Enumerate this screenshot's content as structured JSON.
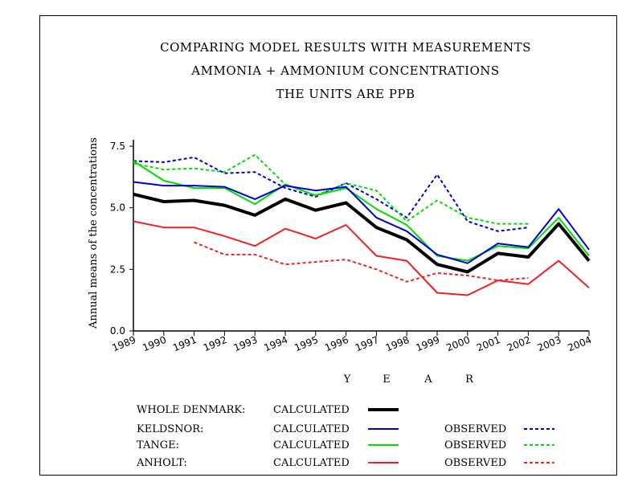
{
  "chart_data": {
    "type": "line",
    "title_lines": [
      "COMPARING MODEL RESULTS WITH MEASUREMENTS",
      "AMMONIA + AMMONIUM  CONCENTRATIONS",
      "THE UNITS ARE PPB"
    ],
    "ylabel": "Annual means of the concentrations",
    "xlabel_letters": [
      "Y",
      "E",
      "A",
      "R"
    ],
    "ylim": [
      0,
      7.5
    ],
    "yticks": [
      "0.0",
      "2.5",
      "5.0",
      "7.5"
    ],
    "x": [
      1989,
      1990,
      1991,
      1992,
      1993,
      1994,
      1995,
      1996,
      1997,
      1998,
      1999,
      2000,
      2001,
      2002,
      2003,
      2004
    ],
    "series": [
      {
        "name": "WHOLE DENMARK: CALCULATED",
        "color": "#000000",
        "style": "solid",
        "width": 4,
        "x": [
          1989,
          1990,
          1991,
          1992,
          1993,
          1994,
          1995,
          1996,
          1997,
          1998,
          1999,
          2000,
          2001,
          2002,
          2003,
          2004
        ],
        "values": [
          5.55,
          5.25,
          5.3,
          5.1,
          4.7,
          5.35,
          4.9,
          5.2,
          4.2,
          3.7,
          2.7,
          2.4,
          3.15,
          3.0,
          4.35,
          2.85
        ]
      },
      {
        "name": "KELDSNOR: CALCULATED",
        "color": "#0000cc",
        "style": "solid",
        "width": 2,
        "x": [
          1989,
          1990,
          1991,
          1992,
          1993,
          1994,
          1995,
          1996,
          1997,
          1998,
          1999,
          2000,
          2001,
          2002,
          2003,
          2004
        ],
        "values": [
          6.05,
          5.9,
          5.9,
          5.85,
          5.35,
          5.9,
          5.7,
          5.85,
          4.6,
          4.05,
          3.1,
          2.75,
          3.55,
          3.4,
          4.95,
          3.3
        ]
      },
      {
        "name": "TANGE: CALCULATED",
        "color": "#00dd00",
        "style": "solid",
        "width": 2,
        "x": [
          1989,
          1990,
          1991,
          1992,
          1993,
          1994,
          1995,
          1996,
          1997,
          1998,
          1999,
          2000,
          2001,
          2002,
          2003,
          2004
        ],
        "values": [
          6.9,
          6.1,
          5.8,
          5.8,
          5.15,
          5.95,
          5.5,
          5.8,
          4.95,
          4.3,
          3.05,
          2.85,
          3.45,
          3.35,
          4.6,
          3.05
        ]
      },
      {
        "name": "ANHOLT: CALCULATED",
        "color": "#ee2222",
        "style": "solid",
        "width": 2,
        "x": [
          1989,
          1990,
          1991,
          1992,
          1993,
          1994,
          1995,
          1996,
          1997,
          1998,
          1999,
          2000,
          2001,
          2002,
          2003,
          2004
        ],
        "values": [
          4.45,
          4.2,
          4.2,
          3.85,
          3.45,
          4.15,
          3.75,
          4.3,
          3.05,
          2.85,
          1.55,
          1.45,
          2.05,
          1.9,
          2.85,
          1.75
        ]
      },
      {
        "name": "KELDSNOR: OBSERVED",
        "color": "#0000cc",
        "style": "dotted",
        "width": 2,
        "x": [
          1989,
          1990,
          1991,
          1992,
          1993,
          1994,
          1995,
          1996,
          1997,
          1998,
          1999,
          2000,
          2001,
          2002
        ],
        "values": [
          6.9,
          6.85,
          7.05,
          6.4,
          6.45,
          5.8,
          5.45,
          6.0,
          5.35,
          4.6,
          6.35,
          4.45,
          4.05,
          4.2
        ]
      },
      {
        "name": "TANGE: OBSERVED",
        "color": "#00dd00",
        "style": "dotted",
        "width": 2,
        "x": [
          1989,
          1990,
          1991,
          1992,
          1993,
          1994,
          1995,
          1996,
          1997,
          1998,
          1999,
          2000,
          2001,
          2002
        ],
        "values": [
          6.8,
          6.55,
          6.6,
          6.45,
          7.15,
          5.95,
          5.5,
          6.0,
          5.7,
          4.45,
          5.3,
          4.6,
          4.35,
          4.35
        ]
      },
      {
        "name": "ANHOLT: OBSERVED",
        "color": "#ee2222",
        "style": "dotted",
        "width": 2,
        "x": [
          1991,
          1992,
          1993,
          1994,
          1995,
          1996,
          1997,
          1998,
          1999,
          2000,
          2001,
          2002
        ],
        "values": [
          3.6,
          3.1,
          3.1,
          2.7,
          2.8,
          2.9,
          2.5,
          2.0,
          2.35,
          2.25,
          2.05,
          2.15
        ]
      }
    ],
    "legend": {
      "rows": [
        {
          "site": "WHOLE DENMARK:",
          "calc_label": "CALCULATED",
          "obs_label": "",
          "color": "#000000",
          "calc_width": 4
        },
        {
          "site": "KELDSNOR:",
          "calc_label": "CALCULATED",
          "obs_label": "OBSERVED",
          "color": "#0000cc",
          "calc_width": 2
        },
        {
          "site": "TANGE:",
          "calc_label": "CALCULATED",
          "obs_label": "OBSERVED",
          "color": "#00dd00",
          "calc_width": 2
        },
        {
          "site": "ANHOLT:",
          "calc_label": "CALCULATED",
          "obs_label": "OBSERVED",
          "color": "#ee2222",
          "calc_width": 2
        }
      ],
      "placement": "bottom"
    },
    "grid": false
  }
}
